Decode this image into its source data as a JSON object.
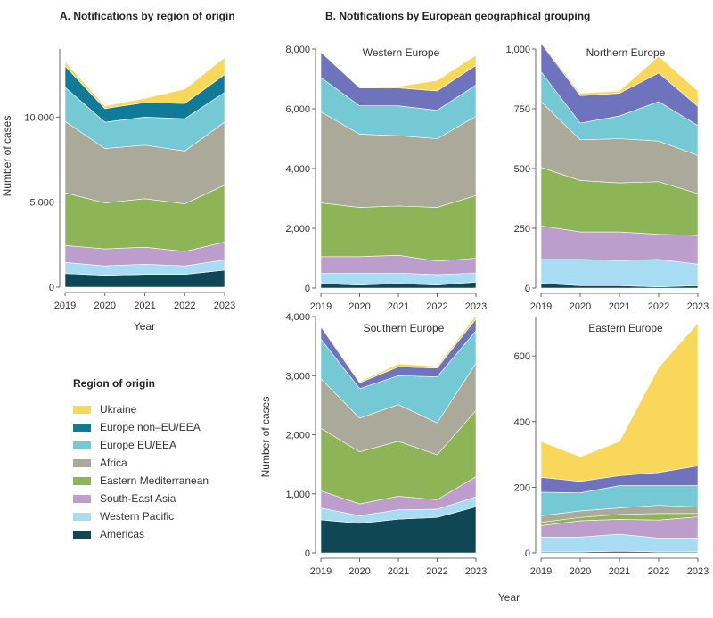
{
  "panel_a_title": "A. Notifications by region of origin",
  "panel_b_title": "B. Notifications by European geographical grouping",
  "legend": {
    "title": "Region of origin",
    "items": [
      {
        "name": "Ukraine",
        "color": "#f9d75b"
      },
      {
        "name": "Europe non–EU/EEA",
        "color": "#117a98"
      },
      {
        "name": "Europe EU/EEA",
        "color": "#74c9d4"
      },
      {
        "name": "Africa",
        "color": "#aba99a"
      },
      {
        "name": "Eastern Mediterranean",
        "color": "#8db557"
      },
      {
        "name": "South-East Asia",
        "color": "#bc9dcb"
      },
      {
        "name": "Western Pacific",
        "color": "#a8dcf2"
      },
      {
        "name": "Americas",
        "color": "#0f4757"
      }
    ]
  },
  "chart_data": [
    {
      "id": "all-regions",
      "type": "area",
      "title": "",
      "stacked": true,
      "xlabel": "Year",
      "ylabel": "Number of cases",
      "x": [
        2019,
        2020,
        2021,
        2022,
        2023
      ],
      "ylim": [
        0,
        14000
      ],
      "yticks": [
        0,
        5000,
        10000
      ],
      "ytick_labels": [
        "0",
        "5,000",
        "10,000"
      ],
      "series": [
        {
          "name": "Americas",
          "color": "#0f4757",
          "values": [
            800,
            700,
            750,
            750,
            1000
          ]
        },
        {
          "name": "Western Pacific",
          "color": "#a8dcf2",
          "values": [
            650,
            550,
            600,
            500,
            600
          ]
        },
        {
          "name": "South-East Asia",
          "color": "#bc9dcb",
          "values": [
            1000,
            1000,
            1000,
            850,
            1050
          ]
        },
        {
          "name": "Eastern Mediterranean",
          "color": "#8db557",
          "values": [
            3100,
            2700,
            2850,
            2800,
            3350
          ]
        },
        {
          "name": "Africa",
          "color": "#aba99a",
          "values": [
            4200,
            3200,
            3150,
            3100,
            3700
          ]
        },
        {
          "name": "Europe EU/EEA",
          "color": "#74c9d4",
          "values": [
            2000,
            1550,
            1650,
            1900,
            1750
          ]
        },
        {
          "name": "Europe non–EU/EEA",
          "color": "#117a98",
          "values": [
            1250,
            800,
            850,
            900,
            1050
          ]
        },
        {
          "name": "Ukraine",
          "color": "#f9d75b",
          "values": [
            250,
            150,
            250,
            850,
            1000
          ]
        }
      ]
    },
    {
      "id": "western-europe",
      "type": "area",
      "title": "Western Europe",
      "stacked": true,
      "xlabel": "",
      "ylabel": "",
      "x": [
        2019,
        2020,
        2021,
        2022,
        2023
      ],
      "ylim": [
        0,
        8000
      ],
      "yticks": [
        0,
        2000,
        4000,
        6000,
        8000
      ],
      "ytick_labels": [
        "0",
        "2,000",
        "4,000",
        "6,000",
        "8,000"
      ],
      "series": [
        {
          "name": "Americas",
          "color": "#0f4757",
          "values": [
            150,
            100,
            150,
            100,
            200
          ]
        },
        {
          "name": "Western Pacific",
          "color": "#a8dcf2",
          "values": [
            350,
            400,
            350,
            350,
            300
          ]
        },
        {
          "name": "South-East Asia",
          "color": "#bc9dcb",
          "values": [
            550,
            550,
            600,
            450,
            500
          ]
        },
        {
          "name": "Eastern Mediterranean",
          "color": "#8db557",
          "values": [
            1800,
            1650,
            1650,
            1800,
            2100
          ]
        },
        {
          "name": "Africa",
          "color": "#aba99a",
          "values": [
            3050,
            2450,
            2350,
            2300,
            2650
          ]
        },
        {
          "name": "Europe EU/EEA",
          "color": "#74c9d4",
          "values": [
            1150,
            950,
            1000,
            950,
            1050
          ]
        },
        {
          "name": "Europe non–EU/EEA",
          "color": "#6f73be",
          "values": [
            850,
            600,
            600,
            650,
            650
          ]
        },
        {
          "name": "Ukraine",
          "color": "#f9d75b",
          "values": [
            0,
            0,
            50,
            350,
            350
          ]
        }
      ]
    },
    {
      "id": "northern-europe",
      "type": "area",
      "title": "Northern Europe",
      "stacked": true,
      "xlabel": "",
      "ylabel": "",
      "x": [
        2019,
        2020,
        2021,
        2022,
        2023
      ],
      "ylim": [
        0,
        1000
      ],
      "yticks": [
        0,
        250,
        500,
        750,
        1000
      ],
      "ytick_labels": [
        "0",
        "250",
        "500",
        "750",
        "1,000"
      ],
      "series": [
        {
          "name": "Americas",
          "color": "#0f4757",
          "values": [
            20,
            10,
            10,
            5,
            10
          ]
        },
        {
          "name": "Western Pacific",
          "color": "#a8dcf2",
          "values": [
            100,
            110,
            105,
            115,
            90
          ]
        },
        {
          "name": "South-East Asia",
          "color": "#bc9dcb",
          "values": [
            140,
            115,
            120,
            105,
            120
          ]
        },
        {
          "name": "Eastern Mediterranean",
          "color": "#8db557",
          "values": [
            245,
            215,
            205,
            220,
            175
          ]
        },
        {
          "name": "Africa",
          "color": "#aba99a",
          "values": [
            275,
            170,
            185,
            170,
            160
          ]
        },
        {
          "name": "Europe EU/EEA",
          "color": "#74c9d4",
          "values": [
            125,
            70,
            95,
            165,
            125
          ]
        },
        {
          "name": "Europe non–EU/EEA",
          "color": "#6f73be",
          "values": [
            120,
            115,
            95,
            120,
            80
          ]
        },
        {
          "name": "Ukraine",
          "color": "#f9d75b",
          "values": [
            5,
            10,
            10,
            70,
            65
          ]
        }
      ]
    },
    {
      "id": "southern-europe",
      "type": "area",
      "title": "Southern Europe",
      "stacked": true,
      "xlabel": "",
      "ylabel": "Number of cases",
      "x": [
        2019,
        2020,
        2021,
        2022,
        2023
      ],
      "ylim": [
        0,
        4000
      ],
      "yticks": [
        0,
        1000,
        2000,
        3000,
        4000
      ],
      "ytick_labels": [
        "0",
        "1,000",
        "2,000",
        "3,000",
        "4,000"
      ],
      "series": [
        {
          "name": "Americas",
          "color": "#0f4757",
          "values": [
            560,
            500,
            570,
            600,
            780
          ]
        },
        {
          "name": "Western Pacific",
          "color": "#a8dcf2",
          "values": [
            200,
            130,
            160,
            140,
            170
          ]
        },
        {
          "name": "South-East Asia",
          "color": "#bc9dcb",
          "values": [
            290,
            200,
            230,
            160,
            340
          ]
        },
        {
          "name": "Eastern Mediterranean",
          "color": "#8db557",
          "values": [
            1060,
            880,
            930,
            760,
            1120
          ]
        },
        {
          "name": "Africa",
          "color": "#aba99a",
          "values": [
            840,
            570,
            620,
            540,
            800
          ]
        },
        {
          "name": "Europe EU/EEA",
          "color": "#74c9d4",
          "values": [
            670,
            500,
            490,
            780,
            550
          ]
        },
        {
          "name": "Europe non–EU/EEA",
          "color": "#6f73be",
          "values": [
            210,
            100,
            150,
            150,
            200
          ]
        },
        {
          "name": "Ukraine",
          "color": "#f9d75b",
          "values": [
            20,
            20,
            50,
            30,
            60
          ]
        }
      ]
    },
    {
      "id": "eastern-europe",
      "type": "area",
      "title": "Eastern Europe",
      "stacked": true,
      "xlabel": "",
      "ylabel": "",
      "x": [
        2019,
        2020,
        2021,
        2022,
        2023
      ],
      "ylim": [
        0,
        720
      ],
      "yticks": [
        0,
        200,
        400,
        600
      ],
      "ytick_labels": [
        "0",
        "200",
        "400",
        "600"
      ],
      "series": [
        {
          "name": "Americas",
          "color": "#0f4757",
          "values": [
            3,
            3,
            5,
            3,
            3
          ]
        },
        {
          "name": "Western Pacific",
          "color": "#a8dcf2",
          "values": [
            45,
            45,
            52,
            42,
            42
          ]
        },
        {
          "name": "South-East Asia",
          "color": "#bc9dcb",
          "values": [
            35,
            50,
            45,
            55,
            65
          ]
        },
        {
          "name": "Eastern Mediterranean",
          "color": "#8db557",
          "values": [
            10,
            10,
            15,
            20,
            10
          ]
        },
        {
          "name": "Africa",
          "color": "#aba99a",
          "values": [
            20,
            20,
            20,
            25,
            20
          ]
        },
        {
          "name": "Europe EU/EEA",
          "color": "#74c9d4",
          "values": [
            72,
            55,
            68,
            60,
            65
          ]
        },
        {
          "name": "Europe non–EU/EEA",
          "color": "#6f73be",
          "values": [
            45,
            35,
            30,
            40,
            60
          ]
        },
        {
          "name": "Ukraine",
          "color": "#f9d75b",
          "values": [
            110,
            75,
            105,
            320,
            435
          ]
        }
      ]
    }
  ],
  "bottom_xlabel": "Year"
}
